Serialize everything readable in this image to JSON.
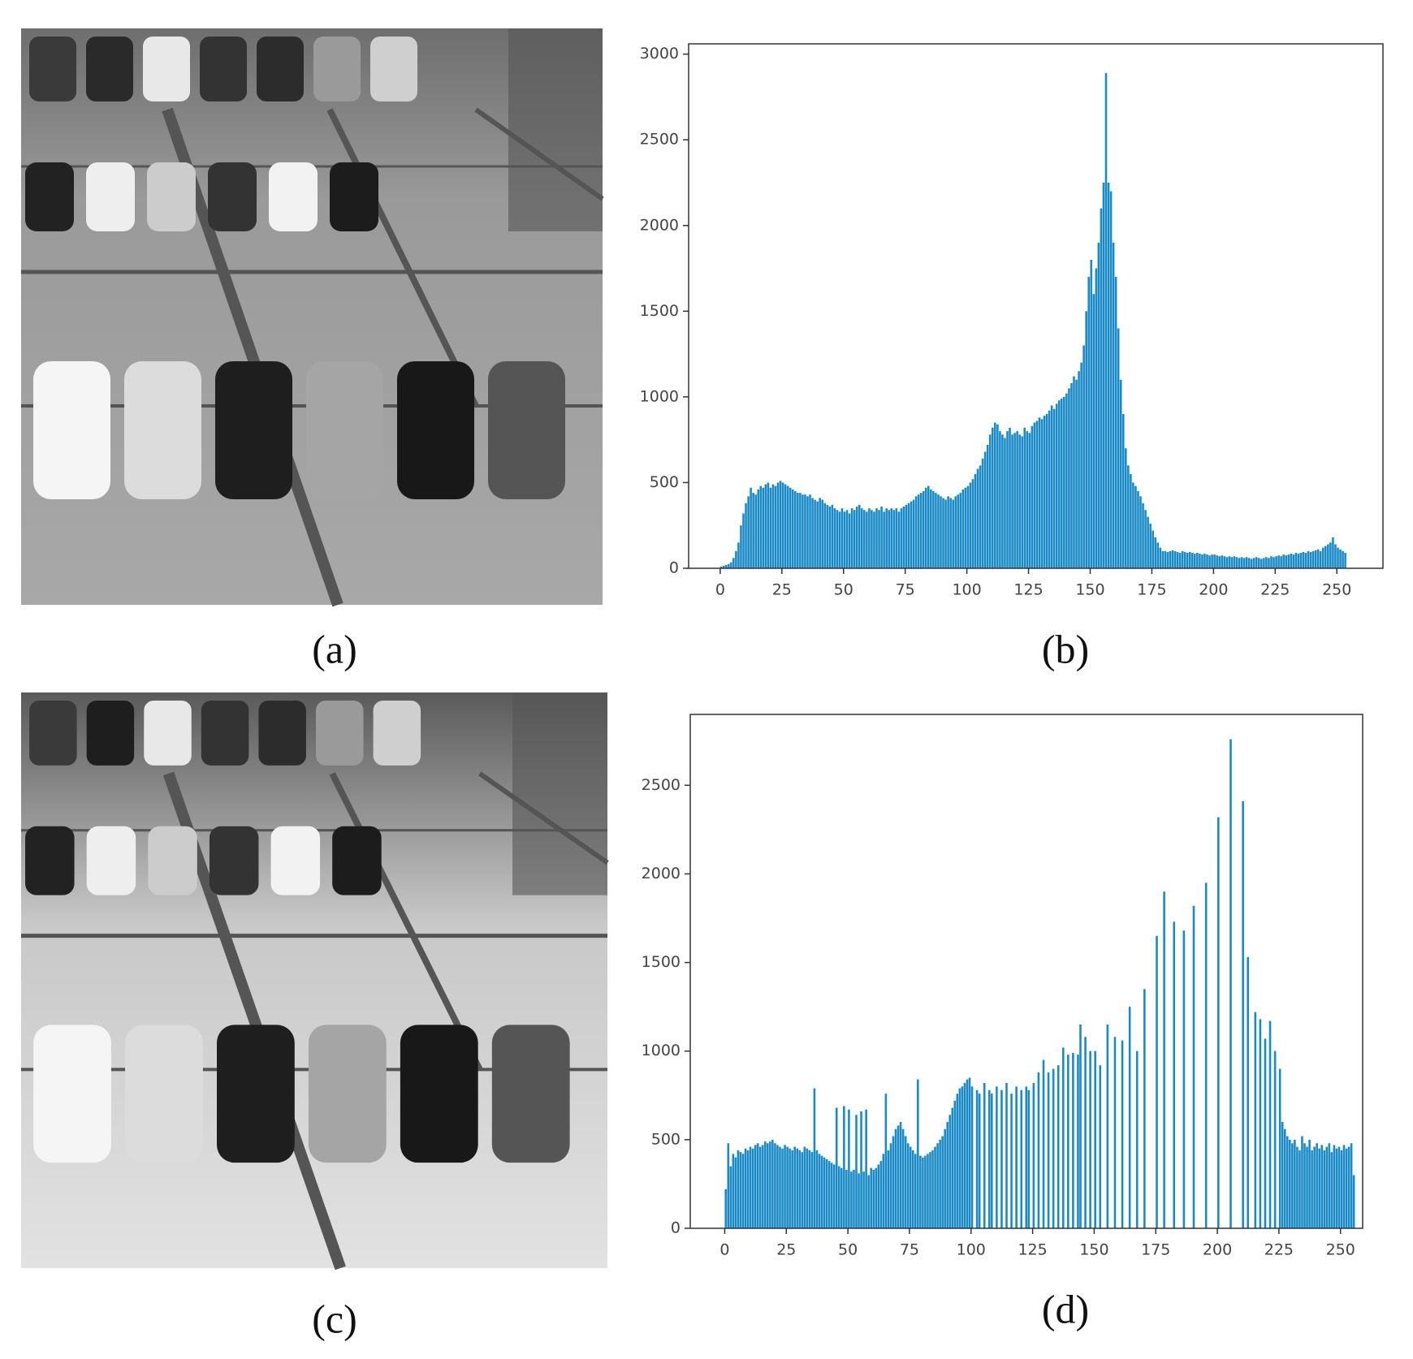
{
  "images": [
    {
      "label": "(a)"
    },
    {
      "label": "(c)"
    }
  ],
  "chart_data": [
    {
      "type": "histogram",
      "label": "(b)",
      "color": "#1a8ac6",
      "bins": [
        0,
        1,
        2,
        3,
        4,
        5,
        6,
        7,
        8,
        9,
        10,
        11,
        12,
        13,
        14,
        15,
        16,
        17,
        18,
        19,
        20,
        21,
        22,
        23,
        24,
        25,
        26,
        27,
        28,
        29,
        30,
        31,
        32,
        33,
        34,
        35,
        36,
        37,
        38,
        39,
        40,
        41,
        42,
        43,
        44,
        45,
        46,
        47,
        48,
        49,
        50,
        51,
        52,
        53,
        54,
        55,
        56,
        57,
        58,
        59,
        60,
        61,
        62,
        63,
        64,
        65,
        66,
        67,
        68,
        69,
        70,
        71,
        72,
        73,
        74,
        75,
        76,
        77,
        78,
        79,
        80,
        81,
        82,
        83,
        84,
        85,
        86,
        87,
        88,
        89,
        90,
        91,
        92,
        93,
        94,
        95,
        96,
        97,
        98,
        99,
        100,
        101,
        102,
        103,
        104,
        105,
        106,
        107,
        108,
        109,
        110,
        111,
        112,
        113,
        114,
        115,
        116,
        117,
        118,
        119,
        120,
        121,
        122,
        123,
        124,
        125,
        126,
        127,
        128,
        129,
        130,
        131,
        132,
        133,
        134,
        135,
        136,
        137,
        138,
        139,
        140,
        141,
        142,
        143,
        144,
        145,
        146,
        147,
        148,
        149,
        150,
        151,
        152,
        153,
        154,
        155,
        156,
        157,
        158,
        159,
        160,
        161,
        162,
        163,
        164,
        165,
        166,
        167,
        168,
        169,
        170,
        171,
        172,
        173,
        174,
        175,
        176,
        177,
        178,
        179,
        180,
        181,
        182,
        183,
        184,
        185,
        186,
        187,
        188,
        189,
        190,
        191,
        192,
        193,
        194,
        195,
        196,
        197,
        198,
        199,
        200,
        201,
        202,
        203,
        204,
        205,
        206,
        207,
        208,
        209,
        210,
        211,
        212,
        213,
        214,
        215,
        216,
        217,
        218,
        219,
        220,
        221,
        222,
        223,
        224,
        225,
        226,
        227,
        228,
        229,
        230,
        231,
        232,
        233,
        234,
        235,
        236,
        237,
        238,
        239,
        240,
        241,
        242,
        243,
        244,
        245,
        246,
        247,
        248,
        249,
        250,
        251,
        252,
        253,
        254,
        255,
        256
      ],
      "values": [
        10,
        15,
        20,
        25,
        35,
        60,
        100,
        150,
        250,
        320,
        380,
        420,
        470,
        440,
        430,
        460,
        480,
        470,
        490,
        500,
        470,
        490,
        480,
        500,
        510,
        500,
        490,
        480,
        470,
        460,
        450,
        440,
        440,
        430,
        430,
        420,
        430,
        410,
        400,
        390,
        410,
        400,
        380,
        370,
        360,
        370,
        350,
        340,
        330,
        350,
        330,
        340,
        320,
        350,
        340,
        360,
        370,
        350,
        340,
        330,
        350,
        340,
        330,
        350,
        340,
        360,
        330,
        350,
        340,
        350,
        340,
        350,
        330,
        350,
        360,
        370,
        380,
        390,
        400,
        420,
        430,
        440,
        450,
        470,
        480,
        460,
        450,
        440,
        430,
        420,
        410,
        400,
        420,
        410,
        400,
        420,
        430,
        440,
        460,
        470,
        480,
        500,
        520,
        550,
        580,
        600,
        640,
        680,
        720,
        780,
        820,
        850,
        840,
        800,
        780,
        760,
        800,
        820,
        780,
        790,
        800,
        780,
        770,
        820,
        800,
        790,
        830,
        850,
        860,
        880,
        870,
        890,
        900,
        920,
        950,
        930,
        960,
        980,
        990,
        1000,
        1020,
        1050,
        1080,
        1120,
        1100,
        1150,
        1200,
        1300,
        1500,
        1700,
        1800,
        1600,
        1750,
        1900,
        2100,
        2250,
        2890,
        2250,
        2200,
        1900,
        1700,
        1400,
        1100,
        900,
        700,
        600,
        550,
        500,
        480,
        450,
        420,
        380,
        340,
        300,
        260,
        220,
        180,
        150,
        120,
        100,
        100,
        95,
        100,
        105,
        100,
        95,
        90,
        100,
        95,
        90,
        95,
        90,
        85,
        90,
        85,
        80,
        85,
        80,
        75,
        80,
        80,
        75,
        70,
        75,
        70,
        65,
        70,
        65,
        70,
        65,
        60,
        65,
        60,
        65,
        60,
        55,
        60,
        65,
        60,
        55,
        60,
        65,
        60,
        70,
        65,
        70,
        75,
        70,
        80,
        75,
        80,
        85,
        80,
        90,
        85,
        90,
        95,
        90,
        100,
        95,
        100,
        105,
        110,
        100,
        120,
        130,
        140,
        150,
        180,
        140,
        120,
        110,
        100,
        90,
        0,
        0
      ],
      "xlim": [
        -12.8,
        268.7
      ],
      "ylim": [
        0,
        3060
      ],
      "xticks": [
        0,
        25,
        50,
        75,
        100,
        125,
        150,
        175,
        200,
        225,
        250
      ],
      "yticks": [
        0,
        500,
        1000,
        1500,
        2000,
        2500,
        3000
      ]
    },
    {
      "type": "histogram",
      "label": "(d)",
      "color": "#1a8ac6",
      "bins": [
        0,
        1,
        2,
        3,
        4,
        5,
        6,
        7,
        8,
        9,
        10,
        11,
        12,
        13,
        14,
        15,
        16,
        17,
        18,
        19,
        20,
        21,
        22,
        23,
        24,
        25,
        26,
        27,
        28,
        29,
        30,
        31,
        32,
        33,
        34,
        35,
        36,
        37,
        38,
        39,
        40,
        41,
        42,
        43,
        44,
        45,
        46,
        47,
        48,
        49,
        50,
        51,
        52,
        53,
        54,
        55,
        56,
        57,
        58,
        59,
        60,
        61,
        62,
        63,
        64,
        65,
        66,
        67,
        68,
        69,
        70,
        71,
        72,
        73,
        74,
        75,
        76,
        77,
        78,
        79,
        80,
        81,
        82,
        83,
        84,
        85,
        86,
        87,
        88,
        89,
        90,
        91,
        92,
        93,
        94,
        95,
        96,
        97,
        98,
        99,
        100,
        101,
        102,
        103,
        104,
        105,
        106,
        107,
        108,
        109,
        110,
        111,
        112,
        113,
        114,
        115,
        116,
        117,
        118,
        119,
        120,
        121,
        122,
        123,
        124,
        125,
        126,
        127,
        128,
        129,
        130,
        131,
        132,
        133,
        134,
        135,
        136,
        137,
        138,
        139,
        140,
        141,
        142,
        143,
        144,
        145,
        146,
        147,
        148,
        149,
        150,
        151,
        152,
        153,
        154,
        155,
        156,
        157,
        158,
        159,
        160,
        161,
        162,
        163,
        164,
        165,
        166,
        167,
        168,
        169,
        170,
        171,
        172,
        173,
        174,
        175,
        176,
        177,
        178,
        179,
        180,
        181,
        182,
        183,
        184,
        185,
        186,
        187,
        188,
        189,
        190,
        191,
        192,
        193,
        194,
        195,
        196,
        197,
        198,
        199,
        200,
        201,
        202,
        203,
        204,
        205,
        206,
        207,
        208,
        209,
        210,
        211,
        212,
        213,
        214,
        215,
        216,
        217,
        218,
        219,
        220,
        221,
        222,
        223,
        224,
        225,
        226,
        227,
        228,
        229,
        230,
        231,
        232,
        233,
        234,
        235,
        236,
        237,
        238,
        239,
        240,
        241,
        242,
        243,
        244,
        245,
        246,
        247,
        248,
        249,
        250,
        251,
        252,
        253,
        254,
        255,
        256
      ],
      "values": [
        220,
        480,
        350,
        420,
        400,
        440,
        430,
        420,
        450,
        440,
        460,
        450,
        470,
        480,
        460,
        470,
        490,
        480,
        490,
        500,
        480,
        470,
        460,
        450,
        470,
        460,
        450,
        440,
        460,
        450,
        440,
        430,
        460,
        450,
        440,
        430,
        790,
        440,
        420,
        410,
        400,
        390,
        380,
        370,
        360,
        680,
        350,
        340,
        690,
        330,
        670,
        320,
        330,
        640,
        310,
        660,
        320,
        670,
        300,
        340,
        330,
        340,
        360,
        380,
        420,
        760,
        440,
        480,
        520,
        560,
        580,
        600,
        560,
        520,
        480,
        460,
        440,
        420,
        840,
        410,
        400,
        410,
        420,
        430,
        440,
        460,
        480,
        500,
        520,
        560,
        600,
        640,
        680,
        720,
        760,
        790,
        800,
        820,
        840,
        850,
        800,
        0,
        780,
        760,
        0,
        820,
        0,
        780,
        760,
        0,
        800,
        0,
        780,
        0,
        820,
        0,
        760,
        0,
        800,
        0,
        780,
        0,
        800,
        780,
        0,
        820,
        0,
        880,
        0,
        950,
        0,
        880,
        0,
        900,
        0,
        920,
        0,
        1020,
        0,
        980,
        0,
        990,
        0,
        980,
        1150,
        0,
        1080,
        0,
        1000,
        0,
        1000,
        0,
        920,
        0,
        0,
        1150,
        0,
        0,
        1080,
        0,
        0,
        1060,
        0,
        0,
        1250,
        0,
        0,
        1000,
        0,
        0,
        1350,
        0,
        0,
        0,
        0,
        1650,
        0,
        0,
        1900,
        0,
        0,
        0,
        1730,
        0,
        0,
        0,
        1680,
        0,
        0,
        0,
        1820,
        0,
        0,
        0,
        0,
        1950,
        0,
        0,
        0,
        0,
        2320,
        0,
        0,
        0,
        0,
        2760,
        0,
        0,
        0,
        0,
        2410,
        0,
        1530,
        0,
        0,
        1220,
        0,
        1180,
        0,
        1070,
        0,
        1170,
        0,
        1000,
        0,
        900,
        600,
        560,
        520,
        500,
        480,
        500,
        460,
        440,
        520,
        480,
        460,
        500,
        440,
        460,
        480,
        450,
        470,
        440,
        460,
        480,
        430,
        470,
        450,
        460,
        440,
        470,
        450,
        460,
        480,
        300
      ],
      "xlim": [
        -14,
        259
      ],
      "ylim": [
        0,
        2900
      ],
      "xticks": [
        0,
        25,
        50,
        75,
        100,
        125,
        150,
        175,
        200,
        225,
        250
      ],
      "yticks": [
        0,
        500,
        1000,
        1500,
        2000,
        2500
      ]
    }
  ]
}
